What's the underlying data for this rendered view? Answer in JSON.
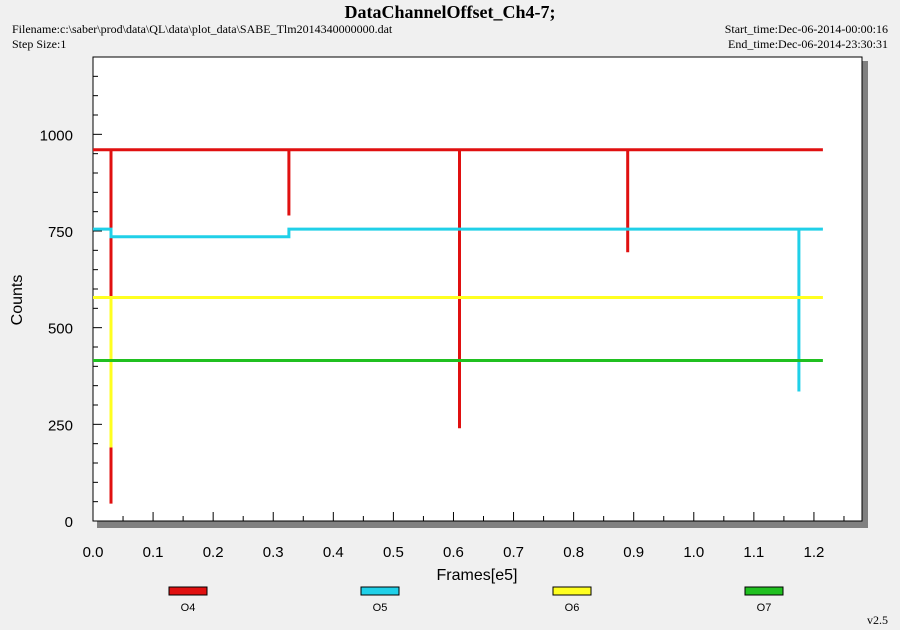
{
  "header": {
    "title": "DataChannelOffset_Ch4-7;",
    "filename": "Filename:c:\\saber\\prod\\data\\QL\\data\\plot_data\\SABE_Tlm2014340000000.dat",
    "step_size": "Step Size:1",
    "start_time": "Start_time:Dec-06-2014-00:00:16",
    "end_time": "End_time:Dec-06-2014-23:30:31"
  },
  "version": "v2.5",
  "chart_data": {
    "type": "line",
    "xlabel": "Frames[e5]",
    "ylabel": "Counts",
    "xlim": [
      0,
      1.28
    ],
    "ylim": [
      0,
      1200
    ],
    "x_ticks": [
      "0.0",
      "0.1",
      "0.2",
      "0.3",
      "0.4",
      "0.5",
      "0.6",
      "0.7",
      "0.8",
      "0.9",
      "1.0",
      "1.1",
      "1.2"
    ],
    "y_ticks": [
      "0",
      "250",
      "500",
      "750",
      "1000"
    ],
    "grid": false,
    "legend_position": "bottom",
    "series": [
      {
        "name": "O4",
        "color": "#e01010",
        "points": [
          [
            0,
            960
          ],
          [
            0.03,
            960
          ],
          [
            0.03,
            45
          ],
          [
            0.03,
            960
          ],
          [
            0.326,
            960
          ],
          [
            0.326,
            790
          ],
          [
            0.326,
            960
          ],
          [
            0.61,
            960
          ],
          [
            0.61,
            240
          ],
          [
            0.61,
            960
          ],
          [
            0.89,
            960
          ],
          [
            0.89,
            695
          ],
          [
            0.89,
            960
          ],
          [
            1.215,
            960
          ]
        ]
      },
      {
        "name": "O5",
        "color": "#20d0e8",
        "points": [
          [
            0,
            755
          ],
          [
            0.03,
            755
          ],
          [
            0.03,
            735
          ],
          [
            0.326,
            735
          ],
          [
            0.326,
            755
          ],
          [
            1.175,
            755
          ],
          [
            1.175,
            335
          ],
          [
            1.175,
            755
          ],
          [
            1.215,
            755
          ]
        ]
      },
      {
        "name": "O6",
        "color": "#ffff20",
        "points": [
          [
            0,
            578
          ],
          [
            0.03,
            578
          ],
          [
            0.03,
            190
          ],
          [
            0.03,
            578
          ],
          [
            1.215,
            578
          ]
        ]
      },
      {
        "name": "O7",
        "color": "#20c020",
        "points": [
          [
            0,
            415
          ],
          [
            1.215,
            415
          ]
        ]
      }
    ]
  }
}
